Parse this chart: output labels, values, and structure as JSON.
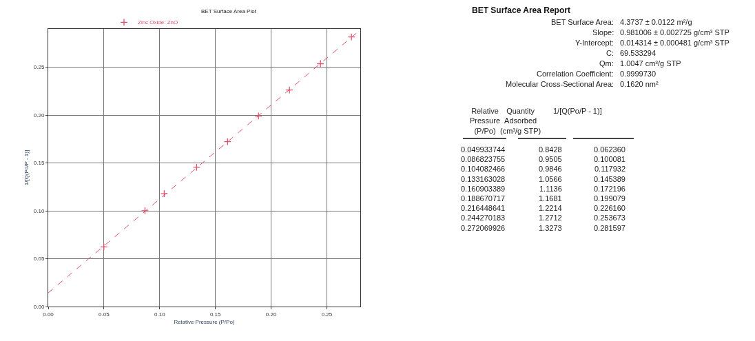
{
  "chart_data": [
    {
      "type": "scatter",
      "title": "BET Surface Area Plot",
      "xlabel": "Relative Pressure (P/Po)",
      "ylabel": "1/[Q(Po/P - 1)]",
      "x": [
        0.049933744,
        0.086823755,
        0.104082466,
        0.133163028,
        0.160903389,
        0.188670717,
        0.216448641,
        0.244270183,
        0.272069926
      ],
      "series": [
        {
          "name": "Zinc Oxide: ZnO",
          "color": "#e0506e",
          "marker": "cross",
          "values": [
            0.06236,
            0.100081,
            0.117932,
            0.145389,
            0.172196,
            0.199079,
            0.22616,
            0.253673,
            0.281597
          ]
        },
        {
          "type": "line",
          "color": "#e0506e",
          "line_style": "dashed",
          "marker": "none",
          "x": [
            0,
            0.28
          ],
          "values": [
            0.0143,
            0.289
          ]
        }
      ],
      "xlim": [
        0,
        0.28
      ],
      "xticks": [
        {
          "value": 0,
          "label": "0.00"
        },
        0.05,
        {
          "value": 0.1,
          "label": "0.10"
        },
        0.15,
        {
          "value": 0.2,
          "label": "0.20"
        },
        0.25
      ],
      "ylim": [
        0,
        0.29
      ],
      "yticks": [
        {
          "value": 0,
          "label": "0.00"
        },
        0.05,
        {
          "value": 0.1,
          "label": "0.10"
        },
        0.15,
        {
          "value": 0.2,
          "label": "0.20"
        },
        0.25
      ],
      "grid": true,
      "legend": "top left"
    },
    {
      "type": "other",
      "title": "BET Surface Area Report",
      "annotations": [
        "BET Surface Area: 4.3737 ± 0.0122 m²/g",
        "Slope: 0.981006 ± 0.002725 g/cm³ STP",
        "Y-Intercept: 0.014314 ± 0.000481 g/cm³ STP",
        "C: 69.533294",
        "Qm: 1.0047 cm³/g STP",
        "Correlation Coefficient: 0.9999730",
        "Molecular Cross-Sectional Area: 0.1620 nm²",
        "Relative\nPressure\n(P/Po)\tQuantity\nAdsorbed\n(cm³/g STP)\t1/[Q(Po/P - 1)]",
        "0.049933744\t0.8428\t0.062360",
        "0.086823755\t0.9505\t0.100081",
        "0.104082466\t0.9846\t0.117932",
        "0.133163028\t1.0566\t0.145389",
        "0.160903389\t1.1136\t0.172196",
        "0.188670717\t1.1681\t0.199079",
        "0.216448641\t1.2214\t0.226160",
        "0.244270183\t1.2712\t0.253673",
        "0.272069926\t1.3273\t0.281597"
      ]
    }
  ]
}
